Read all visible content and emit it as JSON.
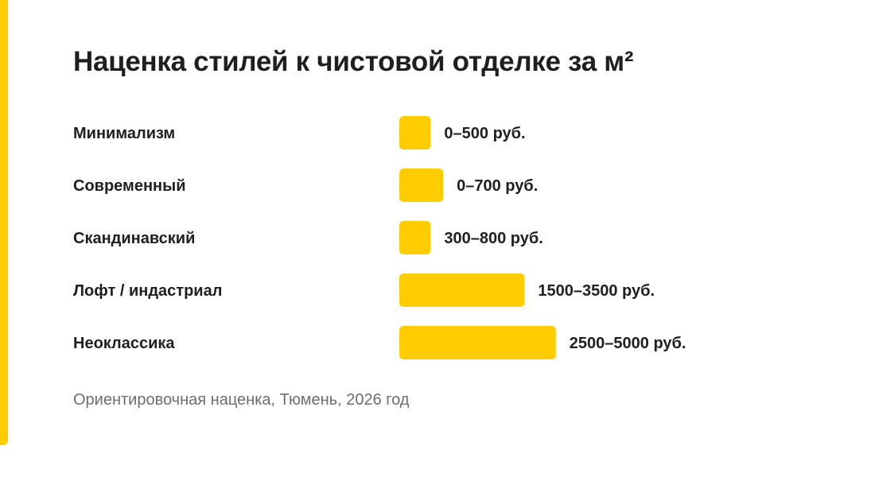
{
  "colors": {
    "accent": "#ffcc00",
    "text": "#1f1f1f",
    "muted": "#6e6e6e",
    "background": "#ffffff"
  },
  "chart_data": {
    "type": "bar",
    "orientation": "horizontal",
    "title": "Наценка стилей к чистовой отделке за м²",
    "subtitle": "",
    "xlabel": "",
    "ylabel": "",
    "grid": false,
    "legend": "none",
    "unit": "руб.",
    "categories": [
      "Минимализм",
      "Современный",
      "Скандинавский",
      "Лофт / индастриал",
      "Неоклассика"
    ],
    "ranges": [
      [
        0,
        500
      ],
      [
        0,
        700
      ],
      [
        300,
        800
      ],
      [
        1500,
        3500
      ],
      [
        2500,
        5000
      ]
    ],
    "value_labels": [
      "0–500 руб.",
      "0–700 руб.",
      "300–800 руб.",
      "1500–3500 руб.",
      "2500–5000 руб."
    ],
    "note": "Ориентировочная наценка, Тюмень, 2026 год"
  }
}
